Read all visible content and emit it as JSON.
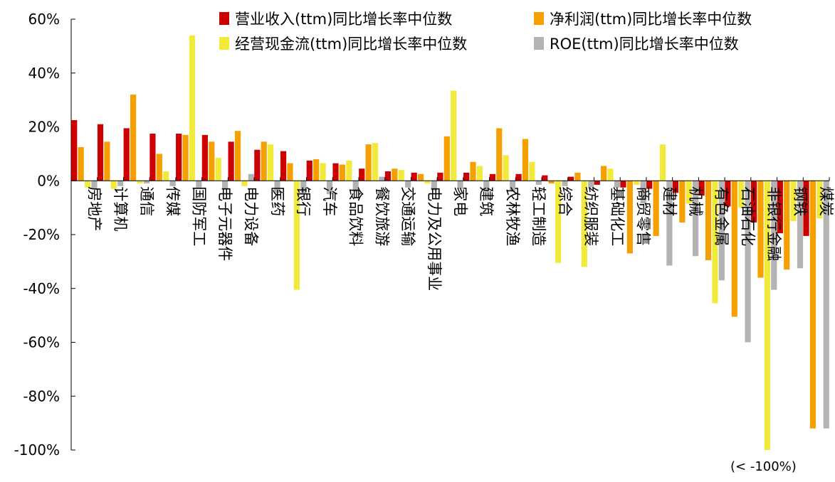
{
  "chart_data": {
    "type": "bar",
    "categories": [
      "房地产",
      "计算机",
      "通信",
      "传媒",
      "国防军工",
      "电子元器件",
      "电力设备",
      "医药",
      "银行",
      "汽车",
      "食品饮料",
      "餐饮旅游",
      "交通运输",
      "电力及公用事业",
      "家电",
      "建筑",
      "农林牧渔",
      "轻工制造",
      "综合",
      "纺织服装",
      "基础化工",
      "商贸零售",
      "建材",
      "机械",
      "有色金属",
      "石油石化",
      "非银行金融",
      "钢铁",
      "煤炭"
    ],
    "series": [
      {
        "name": "营业收入(ttm)同比增长率中位数",
        "color": "#cc0000",
        "values": [
          22.5,
          21,
          19.5,
          17.5,
          17.5,
          17,
          14.5,
          11.5,
          11,
          7.5,
          6.5,
          4.5,
          3.5,
          3,
          3,
          3,
          2.5,
          2.5,
          2,
          1.5,
          -1.5,
          -2.5,
          -3,
          -4.5,
          -5.5,
          -9.5,
          -15.5,
          -19.5,
          -20.5
        ]
      },
      {
        "name": "净利润(ttm)同比增长率中位数",
        "color": "#f5a000",
        "values": [
          12.5,
          14.5,
          32,
          10,
          17,
          14.5,
          18.5,
          14.5,
          6.5,
          8,
          6,
          13.5,
          4.5,
          2.5,
          16.5,
          7,
          19.5,
          15.5,
          -1,
          3,
          5.5,
          -27,
          -20.5,
          -15.5,
          -29.5,
          -50.5,
          -36,
          -33,
          -92
        ]
      },
      {
        "name": "经营现金流(ttm)同比增长率中位数",
        "color": "#f2ea3a",
        "values": [
          -2.5,
          -3,
          -1,
          3.5,
          54,
          8.5,
          -2,
          13.5,
          -40.5,
          6.5,
          7.5,
          14,
          4,
          -1,
          33.5,
          5.5,
          9.5,
          7,
          -30.5,
          -32,
          4.5,
          -1.5,
          13.5,
          -8.5,
          -45.5,
          -10,
          -101,
          -15,
          -14
        ]
      },
      {
        "name": "ROE(ttm)同比增长率中位数",
        "color": "#b3b3b3",
        "values": [
          -3,
          -2,
          -1,
          -2,
          -2.5,
          -3,
          2.5,
          -4.5,
          -5,
          -5,
          -4,
          1.5,
          -2.5,
          -3.5,
          -3,
          -4,
          -4,
          -1.5,
          -2,
          -2.5,
          -2.5,
          -8.5,
          -31.5,
          -28,
          -37,
          -60,
          -40.5,
          -32.5,
          -92
        ]
      }
    ],
    "yticks": [
      "60%",
      "40%",
      "20%",
      "0%",
      "-20%",
      "-40%",
      "-60%",
      "-80%",
      "-100%"
    ],
    "ytick_values": [
      60,
      40,
      20,
      0,
      -20,
      -40,
      -60,
      -80,
      -100
    ],
    "ylim": [
      -100,
      60
    ],
    "legend_position": "top-right",
    "annotations": [
      {
        "text": "(< -100%)"
      }
    ],
    "grid": false
  }
}
